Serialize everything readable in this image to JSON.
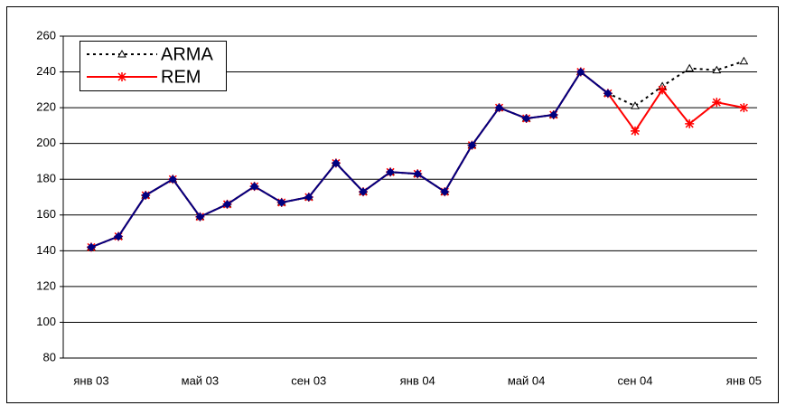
{
  "chart_data": {
    "type": "line",
    "categories": [
      "янв 03",
      null,
      null,
      null,
      "май 03",
      null,
      null,
      null,
      "сен 03",
      null,
      null,
      null,
      "янв 04",
      null,
      null,
      null,
      "май 04",
      null,
      null,
      null,
      "сен 04",
      null,
      null,
      null,
      "янв 05"
    ],
    "series": [
      {
        "name": "ARMA",
        "color": "#000000",
        "values": [
          142,
          148,
          171,
          180,
          159,
          166,
          176,
          167,
          170,
          189,
          173,
          184,
          183,
          173,
          199,
          220,
          214,
          216,
          240,
          228,
          221,
          232,
          242,
          241,
          246
        ]
      },
      {
        "name": "REM",
        "color": "#ff0000",
        "values": [
          142,
          148,
          171,
          180,
          159,
          166,
          176,
          167,
          170,
          189,
          173,
          184,
          183,
          173,
          199,
          220,
          214,
          216,
          240,
          228,
          207,
          230,
          211,
          223,
          220
        ]
      },
      {
        "color": "#000080",
        "values": [
          142,
          148,
          171,
          180,
          159,
          166,
          176,
          167,
          170,
          189,
          173,
          184,
          183,
          173,
          199,
          220,
          214,
          216,
          240,
          228,
          null,
          null,
          null,
          null,
          null
        ]
      }
    ],
    "ylim": [
      80,
      260
    ],
    "yticks": [
      80,
      100,
      120,
      140,
      160,
      180,
      200,
      220,
      240,
      260
    ],
    "grid": true,
    "legend": "upper left"
  }
}
